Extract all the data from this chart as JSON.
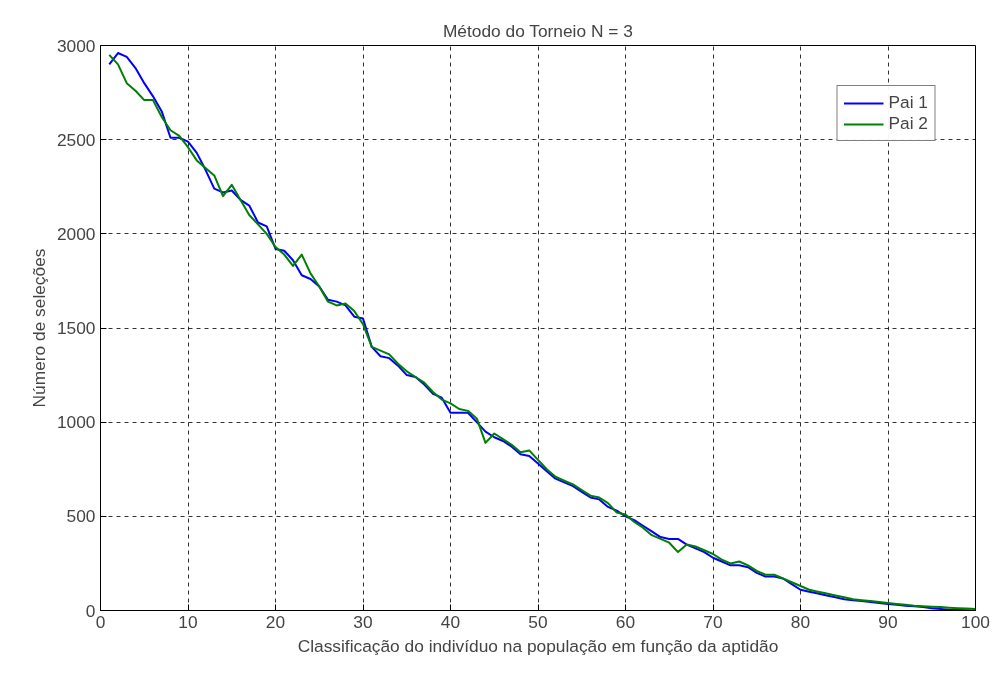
{
  "chart_data": {
    "type": "line",
    "title": "Método do Torneio N = 3",
    "xlabel": "Classificação do indivíduo na população em função da aptidão",
    "ylabel": "Número de seleções",
    "x": [
      1,
      2,
      3,
      4,
      5,
      6,
      7,
      8,
      9,
      10,
      11,
      12,
      13,
      14,
      15,
      16,
      17,
      18,
      19,
      20,
      21,
      22,
      23,
      24,
      25,
      26,
      27,
      28,
      29,
      30,
      31,
      32,
      33,
      34,
      35,
      36,
      37,
      38,
      39,
      40,
      41,
      42,
      43,
      44,
      45,
      46,
      47,
      48,
      49,
      50,
      51,
      52,
      53,
      54,
      55,
      56,
      57,
      58,
      59,
      60,
      61,
      62,
      63,
      64,
      65,
      66,
      67,
      68,
      69,
      70,
      71,
      72,
      73,
      74,
      75,
      76,
      77,
      78,
      79,
      80,
      81,
      82,
      83,
      84,
      85,
      86,
      87,
      88,
      89,
      90,
      91,
      92,
      93,
      94,
      95,
      96,
      97,
      98,
      99,
      100
    ],
    "series": [
      {
        "name": "Pai 1",
        "color": "#0000ff",
        "values": [
          2900,
          2960,
          2940,
          2880,
          2800,
          2730,
          2650,
          2510,
          2510,
          2490,
          2430,
          2340,
          2240,
          2220,
          2230,
          2180,
          2150,
          2060,
          2040,
          1920,
          1910,
          1860,
          1780,
          1760,
          1720,
          1650,
          1640,
          1620,
          1560,
          1550,
          1400,
          1350,
          1340,
          1300,
          1250,
          1240,
          1200,
          1150,
          1130,
          1050,
          1050,
          1050,
          1000,
          950,
          920,
          900,
          870,
          830,
          820,
          780,
          740,
          700,
          680,
          660,
          630,
          600,
          590,
          550,
          530,
          500,
          480,
          450,
          420,
          390,
          380,
          380,
          350,
          330,
          310,
          280,
          260,
          240,
          240,
          230,
          200,
          180,
          180,
          170,
          140,
          110,
          100,
          90,
          80,
          70,
          60,
          55,
          50,
          45,
          40,
          35,
          30,
          25,
          22,
          18,
          12,
          8,
          4,
          2,
          1,
          0
        ]
      },
      {
        "name": "Pai 2",
        "color": "#008000",
        "values": [
          2950,
          2900,
          2800,
          2760,
          2710,
          2710,
          2620,
          2550,
          2520,
          2460,
          2390,
          2350,
          2310,
          2200,
          2260,
          2180,
          2100,
          2050,
          2000,
          1930,
          1890,
          1830,
          1890,
          1790,
          1720,
          1640,
          1620,
          1630,
          1590,
          1520,
          1400,
          1380,
          1360,
          1310,
          1270,
          1240,
          1210,
          1160,
          1120,
          1100,
          1070,
          1060,
          1020,
          890,
          940,
          910,
          880,
          840,
          850,
          800,
          750,
          710,
          690,
          670,
          640,
          610,
          600,
          570,
          520,
          510,
          470,
          440,
          400,
          380,
          360,
          310,
          350,
          340,
          320,
          300,
          270,
          250,
          260,
          240,
          210,
          190,
          190,
          170,
          150,
          130,
          110,
          100,
          90,
          80,
          70,
          60,
          55,
          50,
          45,
          40,
          35,
          30,
          25,
          22,
          20,
          18,
          15,
          12,
          10,
          8
        ]
      }
    ],
    "xlim": [
      0,
      100
    ],
    "ylim": [
      0,
      3000
    ],
    "xticks": [
      0,
      10,
      20,
      30,
      40,
      50,
      60,
      70,
      80,
      90,
      100
    ],
    "yticks": [
      0,
      500,
      1000,
      1500,
      2000,
      2500,
      3000
    ],
    "grid": true,
    "legend": "top right"
  }
}
